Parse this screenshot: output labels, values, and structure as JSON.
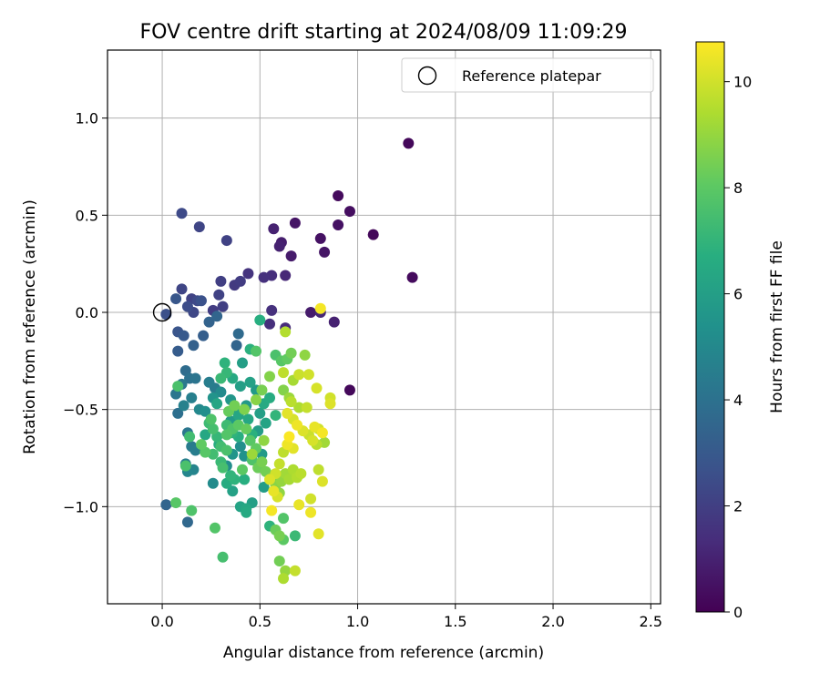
{
  "chart_data": {
    "type": "scatter",
    "title": "FOV centre drift starting at 2024/08/09 11:09:29",
    "xlabel": "Angular distance from reference (arcmin)",
    "ylabel": "Rotation from reference (arcmin)",
    "xlim": [
      -0.28,
      2.55
    ],
    "ylim": [
      -1.5,
      1.35
    ],
    "xticks": [
      "0.0",
      "0.5",
      "1.0",
      "1.5",
      "2.0",
      "2.5"
    ],
    "xtick_values": [
      0,
      0.5,
      1.0,
      1.5,
      2.0,
      2.5
    ],
    "yticks": [
      "−1.0",
      "−0.5",
      "0.0",
      "0.5",
      "1.0"
    ],
    "ytick_values": [
      -1.0,
      -0.5,
      0.0,
      0.5,
      1.0
    ],
    "grid": true,
    "colormap": "viridis",
    "colorbar": {
      "label": "Hours from first FF file",
      "range": [
        0,
        10.75
      ],
      "ticks": [
        "0",
        "2",
        "4",
        "6",
        "8",
        "10"
      ],
      "tick_values": [
        0,
        2,
        4,
        6,
        8,
        10
      ]
    },
    "legend": {
      "position": "top-right",
      "entries": [
        {
          "label": "Reference platepar",
          "marker": "open-circle",
          "x": 0.0,
          "y": 0.0
        }
      ]
    },
    "points": [
      [
        1.26,
        0.87,
        0.2
      ],
      [
        0.9,
        0.6,
        0.3
      ],
      [
        0.96,
        0.52,
        0.4
      ],
      [
        1.28,
        0.18,
        0.3
      ],
      [
        1.08,
        0.4,
        0.2
      ],
      [
        0.9,
        0.45,
        0.5
      ],
      [
        0.68,
        0.46,
        0.6
      ],
      [
        0.81,
        0.38,
        0.5
      ],
      [
        0.83,
        0.31,
        0.6
      ],
      [
        0.57,
        0.43,
        1.0
      ],
      [
        0.61,
        0.36,
        0.9
      ],
      [
        0.6,
        0.34,
        1.0
      ],
      [
        0.66,
        0.29,
        0.8
      ],
      [
        0.63,
        0.19,
        1.2
      ],
      [
        0.52,
        0.18,
        1.5
      ],
      [
        0.56,
        0.19,
        1.4
      ],
      [
        0.44,
        0.2,
        1.6
      ],
      [
        0.4,
        0.16,
        1.9
      ],
      [
        0.37,
        0.14,
        1.8
      ],
      [
        0.3,
        0.16,
        2.0
      ],
      [
        0.29,
        0.09,
        2.1
      ],
      [
        0.26,
        0.01,
        1.9
      ],
      [
        0.31,
        0.03,
        2.0
      ],
      [
        0.1,
        0.51,
        2.4
      ],
      [
        0.19,
        0.44,
        2.2
      ],
      [
        0.33,
        0.37,
        2.1
      ],
      [
        0.56,
        0.01,
        1.5
      ],
      [
        0.55,
        -0.06,
        1.4
      ],
      [
        0.63,
        -0.08,
        1.3
      ],
      [
        0.76,
        0.0,
        0.8
      ],
      [
        0.81,
        0.0,
        1.2
      ],
      [
        0.88,
        -0.05,
        1.0
      ],
      [
        0.96,
        -0.4,
        0.2
      ],
      [
        0.1,
        0.12,
        2.2
      ],
      [
        0.15,
        0.07,
        2.1
      ],
      [
        0.18,
        0.06,
        2.4
      ],
      [
        0.2,
        0.06,
        2.7
      ],
      [
        0.13,
        0.03,
        2.5
      ],
      [
        0.16,
        0.0,
        2.3
      ],
      [
        0.02,
        -0.01,
        2.6
      ],
      [
        0.07,
        0.07,
        2.9
      ],
      [
        0.08,
        -0.1,
        2.8
      ],
      [
        0.11,
        -0.12,
        3.0
      ],
      [
        0.08,
        -0.2,
        3.1
      ],
      [
        0.16,
        -0.17,
        3.3
      ],
      [
        0.21,
        -0.12,
        3.2
      ],
      [
        0.24,
        -0.05,
        3.4
      ],
      [
        0.28,
        -0.02,
        3.5
      ],
      [
        0.39,
        -0.11,
        3.7
      ],
      [
        0.38,
        -0.17,
        3.5
      ],
      [
        0.12,
        -0.3,
        3.8
      ],
      [
        0.14,
        -0.34,
        4.0
      ],
      [
        0.17,
        -0.34,
        4.1
      ],
      [
        0.1,
        -0.37,
        4.3
      ],
      [
        0.24,
        -0.36,
        4.5
      ],
      [
        0.27,
        -0.39,
        4.4
      ],
      [
        0.07,
        -0.42,
        4.2
      ],
      [
        0.15,
        -0.44,
        4.6
      ],
      [
        0.11,
        -0.48,
        4.7
      ],
      [
        0.08,
        -0.52,
        3.9
      ],
      [
        0.19,
        -0.5,
        5.0
      ],
      [
        0.22,
        -0.51,
        5.3
      ],
      [
        0.26,
        -0.44,
        5.5
      ],
      [
        0.3,
        -0.41,
        5.1
      ],
      [
        0.35,
        -0.45,
        5.6
      ],
      [
        0.37,
        -0.49,
        5.4
      ],
      [
        0.4,
        -0.38,
        6.0
      ],
      [
        0.45,
        -0.36,
        6.1
      ],
      [
        0.48,
        -0.4,
        5.8
      ],
      [
        0.43,
        -0.48,
        5.7
      ],
      [
        0.39,
        -0.53,
        6.3
      ],
      [
        0.44,
        -0.55,
        6.4
      ],
      [
        0.5,
        -0.52,
        6.0
      ],
      [
        0.52,
        -0.47,
        6.5
      ],
      [
        0.55,
        -0.44,
        6.6
      ],
      [
        0.53,
        -0.57,
        6.2
      ],
      [
        0.49,
        -0.61,
        5.9
      ],
      [
        0.46,
        -0.63,
        6.8
      ],
      [
        0.58,
        -0.53,
        7.0
      ],
      [
        0.13,
        -0.62,
        4.2
      ],
      [
        0.15,
        -0.69,
        4.4
      ],
      [
        0.17,
        -0.71,
        4.5
      ],
      [
        0.12,
        -0.78,
        4.6
      ],
      [
        0.16,
        -0.81,
        4.8
      ],
      [
        0.13,
        -0.82,
        4.9
      ],
      [
        0.26,
        -0.88,
        5.1
      ],
      [
        0.33,
        -0.79,
        5.2
      ],
      [
        0.36,
        -0.73,
        5.5
      ],
      [
        0.4,
        -0.69,
        5.3
      ],
      [
        0.42,
        -0.74,
        5.4
      ],
      [
        0.51,
        -0.73,
        5.8
      ],
      [
        0.52,
        -0.9,
        5.9
      ],
      [
        0.46,
        -0.98,
        6.0
      ],
      [
        0.4,
        -1.0,
        6.2
      ],
      [
        0.36,
        -0.92,
        6.1
      ],
      [
        0.43,
        -1.01,
        6.4
      ],
      [
        0.43,
        -1.03,
        6.5
      ],
      [
        0.02,
        -0.99,
        3.5
      ],
      [
        0.13,
        -1.08,
        3.6
      ],
      [
        0.33,
        -0.88,
        6.6
      ],
      [
        0.42,
        -0.86,
        6.7
      ],
      [
        0.55,
        -1.1,
        6.9
      ],
      [
        0.68,
        -1.15,
        7.2
      ],
      [
        0.62,
        -1.06,
        7.8
      ],
      [
        0.58,
        -1.12,
        8.3
      ],
      [
        0.6,
        -1.15,
        8.5
      ],
      [
        0.62,
        -1.17,
        8.0
      ],
      [
        0.6,
        -1.28,
        8.4
      ],
      [
        0.63,
        -1.33,
        9.0
      ],
      [
        0.62,
        -1.37,
        9.4
      ],
      [
        0.68,
        -1.33,
        9.8
      ],
      [
        0.27,
        -1.11,
        7.8
      ],
      [
        0.31,
        -1.26,
        7.5
      ],
      [
        0.07,
        -0.98,
        7.9
      ],
      [
        0.15,
        -1.02,
        7.7
      ],
      [
        0.12,
        -0.79,
        7.6
      ],
      [
        0.14,
        -0.64,
        7.4
      ],
      [
        0.08,
        -0.38,
        7.6
      ],
      [
        0.24,
        -0.57,
        7.3
      ],
      [
        0.26,
        -0.6,
        7.5
      ],
      [
        0.28,
        -0.64,
        7.1
      ],
      [
        0.3,
        -0.69,
        7.4
      ],
      [
        0.33,
        -0.71,
        7.6
      ],
      [
        0.3,
        -0.77,
        7.2
      ],
      [
        0.35,
        -0.84,
        7.0
      ],
      [
        0.37,
        -0.86,
        6.9
      ],
      [
        0.33,
        -0.63,
        7.8
      ],
      [
        0.36,
        -0.6,
        7.7
      ],
      [
        0.39,
        -0.58,
        8.0
      ],
      [
        0.43,
        -0.6,
        8.2
      ],
      [
        0.45,
        -0.66,
        7.9
      ],
      [
        0.48,
        -0.7,
        8.1
      ],
      [
        0.46,
        -0.76,
        7.7
      ],
      [
        0.49,
        -0.8,
        8.3
      ],
      [
        0.51,
        -0.77,
        8.5
      ],
      [
        0.53,
        -0.82,
        8.4
      ],
      [
        0.56,
        -0.85,
        8.6
      ],
      [
        0.58,
        -0.89,
        8.8
      ],
      [
        0.6,
        -0.93,
        8.9
      ],
      [
        0.61,
        -0.87,
        9.0
      ],
      [
        0.63,
        -0.83,
        9.2
      ],
      [
        0.65,
        -0.86,
        9.3
      ],
      [
        0.67,
        -0.81,
        9.4
      ],
      [
        0.69,
        -0.85,
        9.5
      ],
      [
        0.71,
        -0.83,
        9.6
      ],
      [
        0.34,
        -0.51,
        8.2
      ],
      [
        0.37,
        -0.48,
        8.4
      ],
      [
        0.42,
        -0.5,
        8.6
      ],
      [
        0.48,
        -0.45,
        8.8
      ],
      [
        0.51,
        -0.4,
        8.5
      ],
      [
        0.55,
        -0.33,
        8.7
      ],
      [
        0.58,
        -0.22,
        7.6
      ],
      [
        0.61,
        -0.25,
        7.9
      ],
      [
        0.64,
        -0.24,
        8.1
      ],
      [
        0.66,
        -0.21,
        8.4
      ],
      [
        0.73,
        -0.22,
        8.9
      ],
      [
        0.62,
        -0.31,
        9.7
      ],
      [
        0.67,
        -0.35,
        9.3
      ],
      [
        0.7,
        -0.32,
        9.9
      ],
      [
        0.75,
        -0.32,
        10.0
      ],
      [
        0.62,
        -0.4,
        8.7
      ],
      [
        0.65,
        -0.44,
        9.1
      ],
      [
        0.66,
        -0.46,
        9.6
      ],
      [
        0.7,
        -0.49,
        9.4
      ],
      [
        0.74,
        -0.49,
        9.8
      ],
      [
        0.64,
        -0.52,
        10.3
      ],
      [
        0.67,
        -0.55,
        10.1
      ],
      [
        0.69,
        -0.58,
        10.5
      ],
      [
        0.72,
        -0.61,
        10.2
      ],
      [
        0.75,
        -0.63,
        9.9
      ],
      [
        0.78,
        -0.59,
        10.4
      ],
      [
        0.8,
        -0.6,
        10.0
      ],
      [
        0.82,
        -0.62,
        10.6
      ],
      [
        0.83,
        -0.67,
        9.2
      ],
      [
        0.79,
        -0.68,
        9.6
      ],
      [
        0.77,
        -0.66,
        10.1
      ],
      [
        0.65,
        -0.64,
        10.7
      ],
      [
        0.64,
        -0.68,
        10.5
      ],
      [
        0.67,
        -0.7,
        10.3
      ],
      [
        0.62,
        -0.72,
        9.7
      ],
      [
        0.6,
        -0.78,
        9.8
      ],
      [
        0.58,
        -0.83,
        10.0
      ],
      [
        0.55,
        -0.86,
        10.2
      ],
      [
        0.57,
        -0.92,
        10.4
      ],
      [
        0.59,
        -0.95,
        10.1
      ],
      [
        0.56,
        -1.02,
        10.6
      ],
      [
        0.8,
        -0.81,
        9.7
      ],
      [
        0.82,
        -0.87,
        10.2
      ],
      [
        0.76,
        -0.96,
        10.0
      ],
      [
        0.76,
        -1.03,
        10.5
      ],
      [
        0.8,
        -1.14,
        10.3
      ],
      [
        0.7,
        -0.99,
        10.4
      ],
      [
        0.86,
        -0.44,
        10.0
      ],
      [
        0.86,
        -0.47,
        10.2
      ],
      [
        0.79,
        -0.39,
        10.1
      ],
      [
        0.81,
        0.02,
        10.6
      ],
      [
        0.63,
        -0.1,
        9.5
      ],
      [
        0.52,
        -0.66,
        8.9
      ],
      [
        0.46,
        -0.73,
        9.1
      ],
      [
        0.41,
        -0.81,
        8.0
      ],
      [
        0.48,
        -0.2,
        7.8
      ],
      [
        0.45,
        -0.19,
        6.8
      ],
      [
        0.41,
        -0.26,
        6.0
      ],
      [
        0.5,
        -0.04,
        6.7
      ],
      [
        0.32,
        -0.26,
        6.9
      ],
      [
        0.33,
        -0.31,
        7.1
      ],
      [
        0.3,
        -0.34,
        7.2
      ],
      [
        0.36,
        -0.34,
        6.5
      ],
      [
        0.28,
        -0.47,
        6.3
      ],
      [
        0.25,
        -0.55,
        7.7
      ],
      [
        0.22,
        -0.63,
        6.4
      ],
      [
        0.22,
        -0.72,
        7.9
      ],
      [
        0.2,
        -0.68,
        8.1
      ],
      [
        0.26,
        -0.73,
        7.4
      ],
      [
        0.29,
        -0.68,
        6.6
      ],
      [
        0.31,
        -0.8,
        7.5
      ],
      [
        0.39,
        -0.64,
        6.7
      ],
      [
        0.35,
        -0.56,
        5.8
      ],
      [
        0.36,
        -0.62,
        6.9
      ],
      [
        0.33,
        -0.58,
        7.3
      ]
    ]
  }
}
